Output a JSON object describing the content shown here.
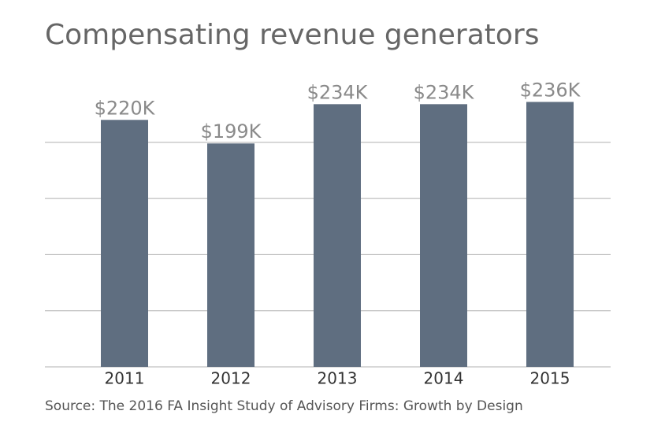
{
  "chart_data": {
    "type": "bar",
    "title": "Compensating revenue generators",
    "source": "Source: The 2016 FA Insight Study of Advisory Firms: Growth by Design",
    "categories": [
      "2011",
      "2012",
      "2013",
      "2014",
      "2015"
    ],
    "values": [
      220,
      199,
      234,
      234,
      236
    ],
    "value_labels": [
      "$220K",
      "$199K",
      "$234K",
      "$234K",
      "$236K"
    ],
    "color": "#5f6e80",
    "ylim": [
      0,
      250
    ],
    "yticks": [
      0,
      50,
      100,
      150,
      200
    ],
    "grid": true
  }
}
